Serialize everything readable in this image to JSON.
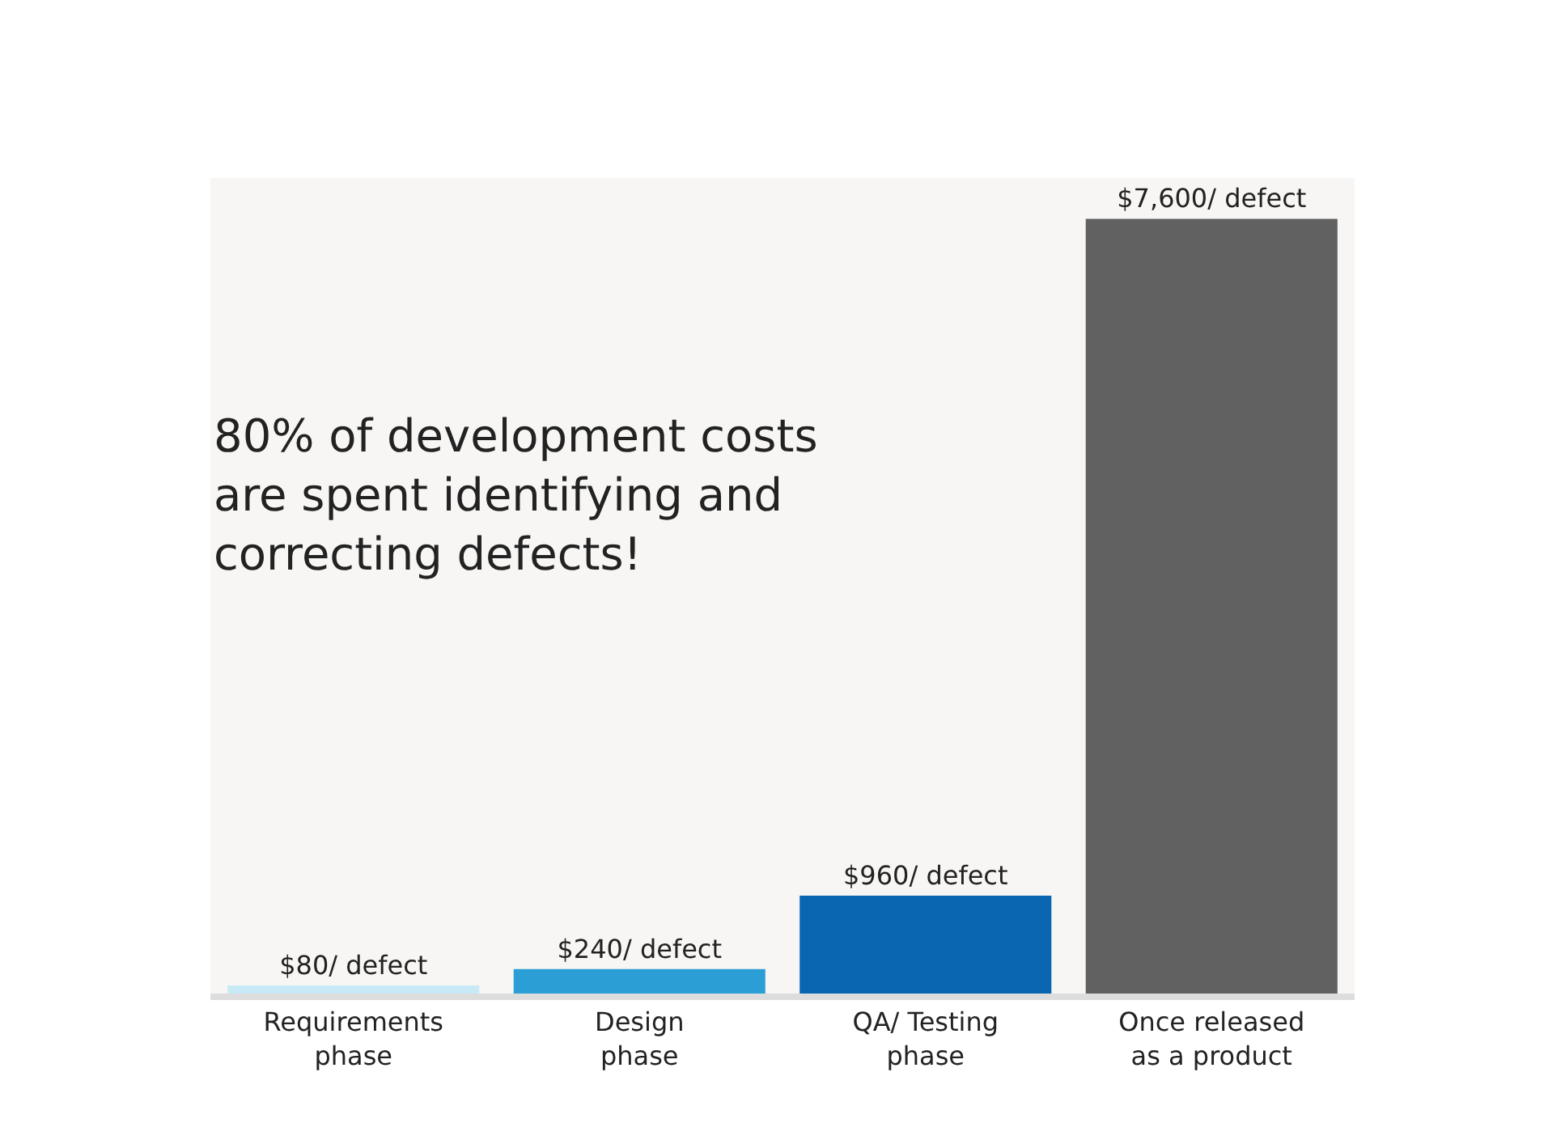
{
  "chart_data": {
    "type": "bar",
    "categories": [
      "Requirements\nphase",
      "Design\nphase",
      "QA/ Testing\nphase",
      "Once released\nas a product"
    ],
    "values": [
      80,
      240,
      960,
      7600
    ],
    "colors": [
      "#c8eaf6",
      "#2b9fd5",
      "#0a66b1",
      "#616161"
    ],
    "value_labels": [
      "$80/ defect",
      "$240/ defect",
      "$960/ defect",
      "$7,600/ defect"
    ],
    "annotations": [
      "80% of development costs\nare spent identifying and\ncorrecting defects!"
    ],
    "grid": false,
    "legend": false
  }
}
